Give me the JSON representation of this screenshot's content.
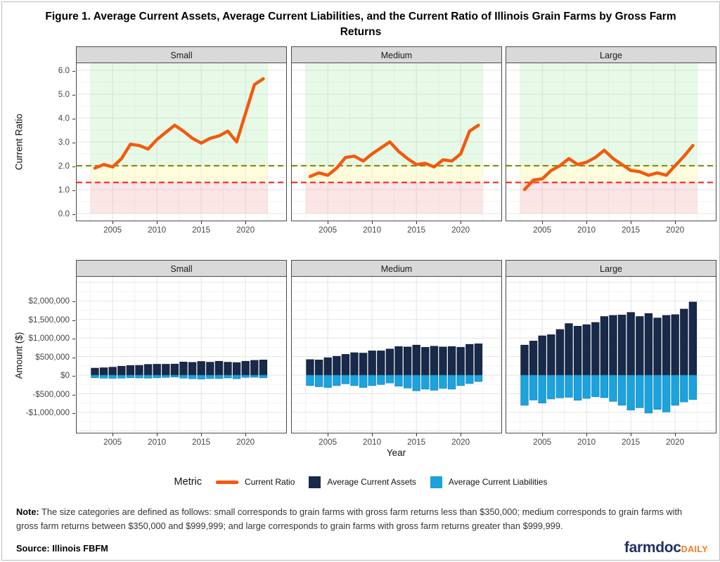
{
  "title": "Figure 1. Average Current Assets, Average Current Liabilities, and the Current Ratio of Illinois Grain Farms by Gross Farm Returns",
  "axes": {
    "ratio_axis_title": "Current Ratio",
    "amount_axis_title": "Amount ($)",
    "x_axis_title": "Year"
  },
  "legend": {
    "title": "Metric",
    "items": [
      {
        "label": "Current Ratio",
        "swatch": "line",
        "color": "#F4590E"
      },
      {
        "label": "Average Current Assets",
        "swatch": "square",
        "color": "#18294A"
      },
      {
        "label": "Average Current Liabilities",
        "swatch": "square",
        "color": "#1CA2DC"
      }
    ]
  },
  "note_label": "Note:",
  "note_text": "The size categories are defined as follows: small corresponds to grain farms with gross farm returns less than $350,000; medium corresponds to grain farms with gross farm returns between $350,000 and $999,999; and large corresponds to grain farms with gross farm returns greater than $999,999.",
  "source_label": "Source:",
  "source_text": "Illinois FBFM",
  "logo": {
    "farmdoc": "farmdoc",
    "daily": "DAILY"
  },
  "colors": {
    "current_ratio": "#F4590E",
    "assets": "#18294A",
    "liabilities": "#1CA2DC",
    "threshold_upper": "#8B8B00",
    "threshold_lower": "#FF2222",
    "band_green": "rgba(144,230,144,0.22)",
    "band_yellow": "rgba(250,250,160,0.35)",
    "band_pink": "rgba(242,160,160,0.28)",
    "strip_bg": "#D9D9D9",
    "grid_major": "#E3E3E3",
    "grid_minor": "#F2F2F2"
  },
  "chart_data": [
    {
      "type": "line",
      "row": "current-ratio",
      "facets": [
        "Small",
        "Medium",
        "Large"
      ],
      "ylabel": "Current Ratio",
      "ylim": [
        -0.3,
        6.3
      ],
      "yticks": {
        "values": [
          6,
          5,
          4,
          3,
          2,
          1,
          0
        ],
        "labels": [
          "6.0",
          "5.0",
          "4.0",
          "3.0",
          "2.0",
          "1.0",
          "0.0"
        ]
      },
      "xticks": {
        "values": [
          2005,
          2010,
          2015,
          2020
        ],
        "labels": [
          "2005",
          "2010",
          "2015",
          "2020"
        ]
      },
      "x": [
        2003,
        2004,
        2005,
        2006,
        2007,
        2008,
        2009,
        2010,
        2011,
        2012,
        2013,
        2014,
        2015,
        2016,
        2017,
        2018,
        2019,
        2020,
        2021,
        2022
      ],
      "reference_lines": [
        {
          "y": 2.0,
          "color": "#8B8B00",
          "style": "dashed"
        },
        {
          "y": 1.3,
          "color": "#FF2222",
          "style": "dashed"
        }
      ],
      "bands": [
        {
          "from": 2.0,
          "to": 6.3,
          "color": "rgba(144,230,144,0.22)"
        },
        {
          "from": 1.3,
          "to": 2.0,
          "color": "rgba(250,250,160,0.35)"
        },
        {
          "from": 0.0,
          "to": 1.3,
          "color": "rgba(242,160,160,0.28)"
        }
      ],
      "series": [
        {
          "facet": "Small",
          "name": "Current Ratio",
          "values": [
            1.9,
            2.05,
            1.95,
            2.3,
            2.9,
            2.85,
            2.7,
            3.1,
            3.4,
            3.7,
            3.45,
            3.15,
            2.95,
            3.15,
            3.25,
            3.45,
            3.0,
            4.2,
            5.4,
            5.65
          ]
        },
        {
          "facet": "Medium",
          "name": "Current Ratio",
          "values": [
            1.55,
            1.7,
            1.6,
            1.9,
            2.35,
            2.4,
            2.2,
            2.5,
            2.75,
            3.0,
            2.6,
            2.3,
            2.05,
            2.1,
            1.95,
            2.25,
            2.2,
            2.5,
            3.45,
            3.7
          ]
        },
        {
          "facet": "Large",
          "name": "Current Ratio",
          "values": [
            1.0,
            1.4,
            1.45,
            1.8,
            2.0,
            2.3,
            2.05,
            2.15,
            2.35,
            2.65,
            2.3,
            2.05,
            1.8,
            1.75,
            1.6,
            1.7,
            1.6,
            2.0,
            2.4,
            2.85
          ]
        }
      ]
    },
    {
      "type": "bar",
      "row": "amounts",
      "facets": [
        "Small",
        "Medium",
        "Large"
      ],
      "ylabel": "Amount ($)",
      "xlabel": "Year",
      "ylim": [
        -1550000,
        2650000
      ],
      "yticks": {
        "values": [
          2000000,
          1500000,
          1000000,
          500000,
          0,
          -500000,
          -1000000
        ],
        "labels": [
          "$2,000,000",
          "$1,500,000",
          "$1,000,000",
          "$500,000",
          "$0",
          "-$500,000",
          "-$1,000,000"
        ]
      },
      "xticks": {
        "values": [
          2005,
          2010,
          2015,
          2020
        ],
        "labels": [
          "2005",
          "2010",
          "2015",
          "2020"
        ]
      },
      "x": [
        2003,
        2004,
        2005,
        2006,
        2007,
        2008,
        2009,
        2010,
        2011,
        2012,
        2013,
        2014,
        2015,
        2016,
        2017,
        2018,
        2019,
        2020,
        2021,
        2022
      ],
      "series": [
        {
          "facet": "Small",
          "name": "Average Current Assets",
          "values": [
            190000,
            200000,
            215000,
            240000,
            260000,
            265000,
            290000,
            295000,
            295000,
            300000,
            355000,
            345000,
            370000,
            350000,
            375000,
            350000,
            340000,
            375000,
            400000,
            410000
          ]
        },
        {
          "facet": "Small",
          "name": "Average Current Liabilities",
          "values": [
            -70000,
            -80000,
            -85000,
            -80000,
            -70000,
            -75000,
            -80000,
            -70000,
            -60000,
            -50000,
            -80000,
            -95000,
            -105000,
            -90000,
            -90000,
            -75000,
            -95000,
            -60000,
            -55000,
            -70000
          ]
        },
        {
          "facet": "Medium",
          "name": "Average Current Assets",
          "values": [
            420000,
            410000,
            470000,
            510000,
            560000,
            605000,
            595000,
            655000,
            655000,
            705000,
            770000,
            760000,
            810000,
            750000,
            780000,
            760000,
            770000,
            750000,
            830000,
            845000
          ]
        },
        {
          "facet": "Medium",
          "name": "Average Current Liabilities",
          "values": [
            -280000,
            -310000,
            -330000,
            -280000,
            -230000,
            -280000,
            -330000,
            -280000,
            -250000,
            -210000,
            -295000,
            -345000,
            -420000,
            -375000,
            -405000,
            -355000,
            -375000,
            -280000,
            -225000,
            -170000
          ]
        },
        {
          "facet": "Large",
          "name": "Average Current Assets",
          "values": [
            810000,
            920000,
            1060000,
            1090000,
            1230000,
            1390000,
            1320000,
            1360000,
            1420000,
            1580000,
            1610000,
            1620000,
            1690000,
            1580000,
            1660000,
            1540000,
            1610000,
            1630000,
            1780000,
            1970000
          ]
        },
        {
          "facet": "Large",
          "name": "Average Current Liabilities",
          "values": [
            -810000,
            -670000,
            -750000,
            -640000,
            -610000,
            -595000,
            -675000,
            -625000,
            -580000,
            -605000,
            -705000,
            -810000,
            -940000,
            -875000,
            -1020000,
            -920000,
            -990000,
            -810000,
            -720000,
            -655000
          ]
        }
      ]
    }
  ]
}
